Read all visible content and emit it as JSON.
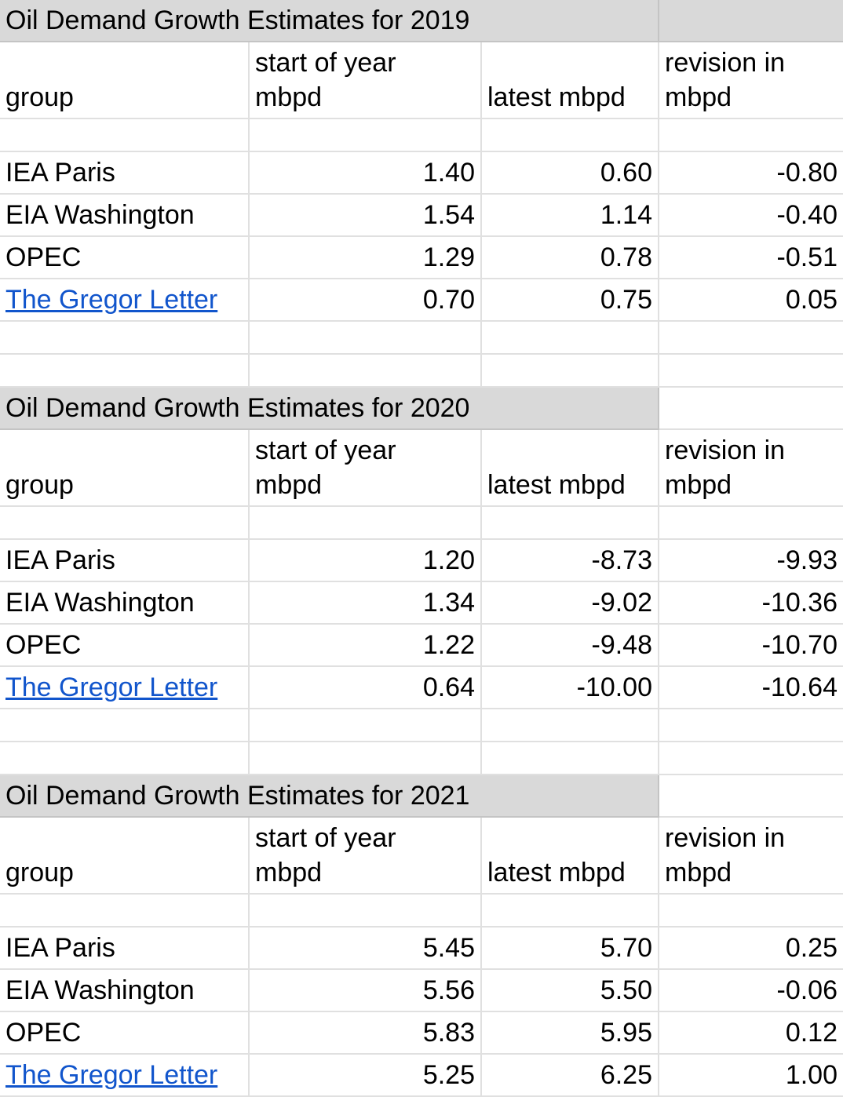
{
  "colors": {
    "title_bg": "#d9d9d9",
    "link": "#1155cc",
    "grid": "#e0e0e0"
  },
  "columns": [
    "group",
    "start of year\nmbpd",
    "latest mbpd",
    "revision in\nmbpd"
  ],
  "sections": [
    {
      "title": "Oil Demand Growth Estimates for 2019",
      "rows": [
        {
          "group": "IEA Paris",
          "start": "1.40",
          "latest": "0.60",
          "revision": "-0.80",
          "link": false
        },
        {
          "group": "EIA Washington",
          "start": "1.54",
          "latest": "1.14",
          "revision": "-0.40",
          "link": false
        },
        {
          "group": "OPEC",
          "start": "1.29",
          "latest": "0.78",
          "revision": "-0.51",
          "link": false
        },
        {
          "group": "The Gregor Letter",
          "start": "0.70",
          "latest": "0.75",
          "revision": "0.05",
          "link": true
        }
      ]
    },
    {
      "title": "Oil Demand Growth Estimates for 2020",
      "rows": [
        {
          "group": "IEA Paris",
          "start": "1.20",
          "latest": "-8.73",
          "revision": "-9.93",
          "link": false
        },
        {
          "group": "EIA Washington",
          "start": "1.34",
          "latest": "-9.02",
          "revision": "-10.36",
          "link": false
        },
        {
          "group": "OPEC",
          "start": "1.22",
          "latest": "-9.48",
          "revision": "-10.70",
          "link": false
        },
        {
          "group": "The Gregor Letter",
          "start": "0.64",
          "latest": "-10.00",
          "revision": "-10.64",
          "link": true
        }
      ]
    },
    {
      "title": "Oil Demand Growth Estimates for 2021",
      "rows": [
        {
          "group": "IEA Paris",
          "start": "5.45",
          "latest": "5.70",
          "revision": "0.25",
          "link": false
        },
        {
          "group": "EIA Washington",
          "start": "5.56",
          "latest": "5.50",
          "revision": "-0.06",
          "link": false
        },
        {
          "group": "OPEC",
          "start": "5.83",
          "latest": "5.95",
          "revision": "0.12",
          "link": false
        },
        {
          "group": "The Gregor Letter",
          "start": "5.25",
          "latest": "6.25",
          "revision": "1.00",
          "link": true
        }
      ]
    }
  ]
}
